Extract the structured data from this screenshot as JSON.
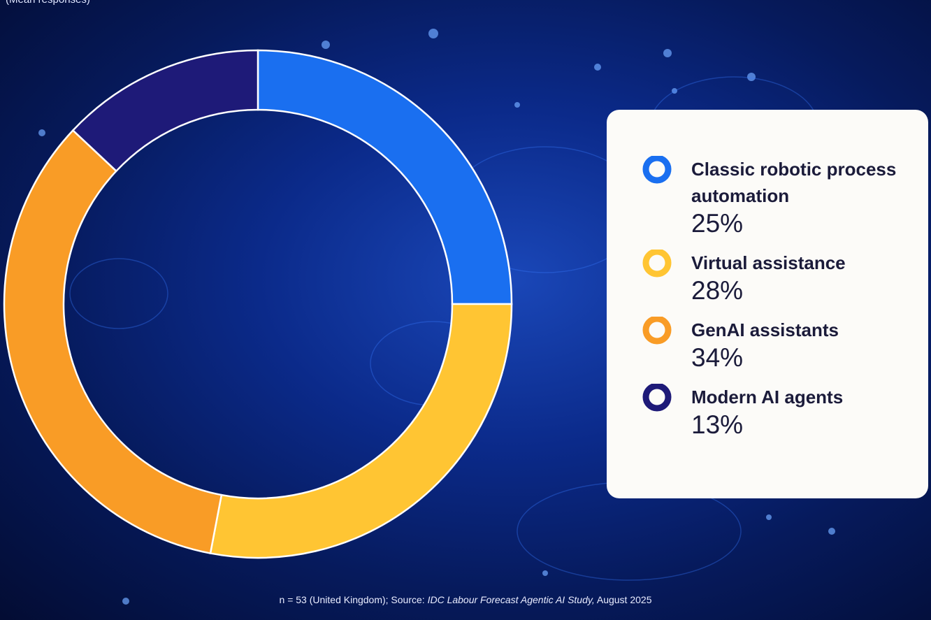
{
  "chart_data": {
    "type": "donut",
    "subtitle": "(Mean responses)",
    "categories": [
      "Classic robotic process automation",
      "Virtual assistance",
      "GenAI assistants",
      "Modern AI agents"
    ],
    "values": [
      25,
      28,
      34,
      13
    ],
    "value_labels": [
      "25%",
      "28%",
      "34%",
      "13%"
    ],
    "colors": [
      "#1a6ff0",
      "#ffc533",
      "#f99c26",
      "#1e1a78"
    ],
    "footnote": {
      "text": "n = 53 (United Kingdom); Source:",
      "italic": "IDC Labour Forecast Agentic AI Study,",
      "suffix": "August 2025"
    }
  }
}
